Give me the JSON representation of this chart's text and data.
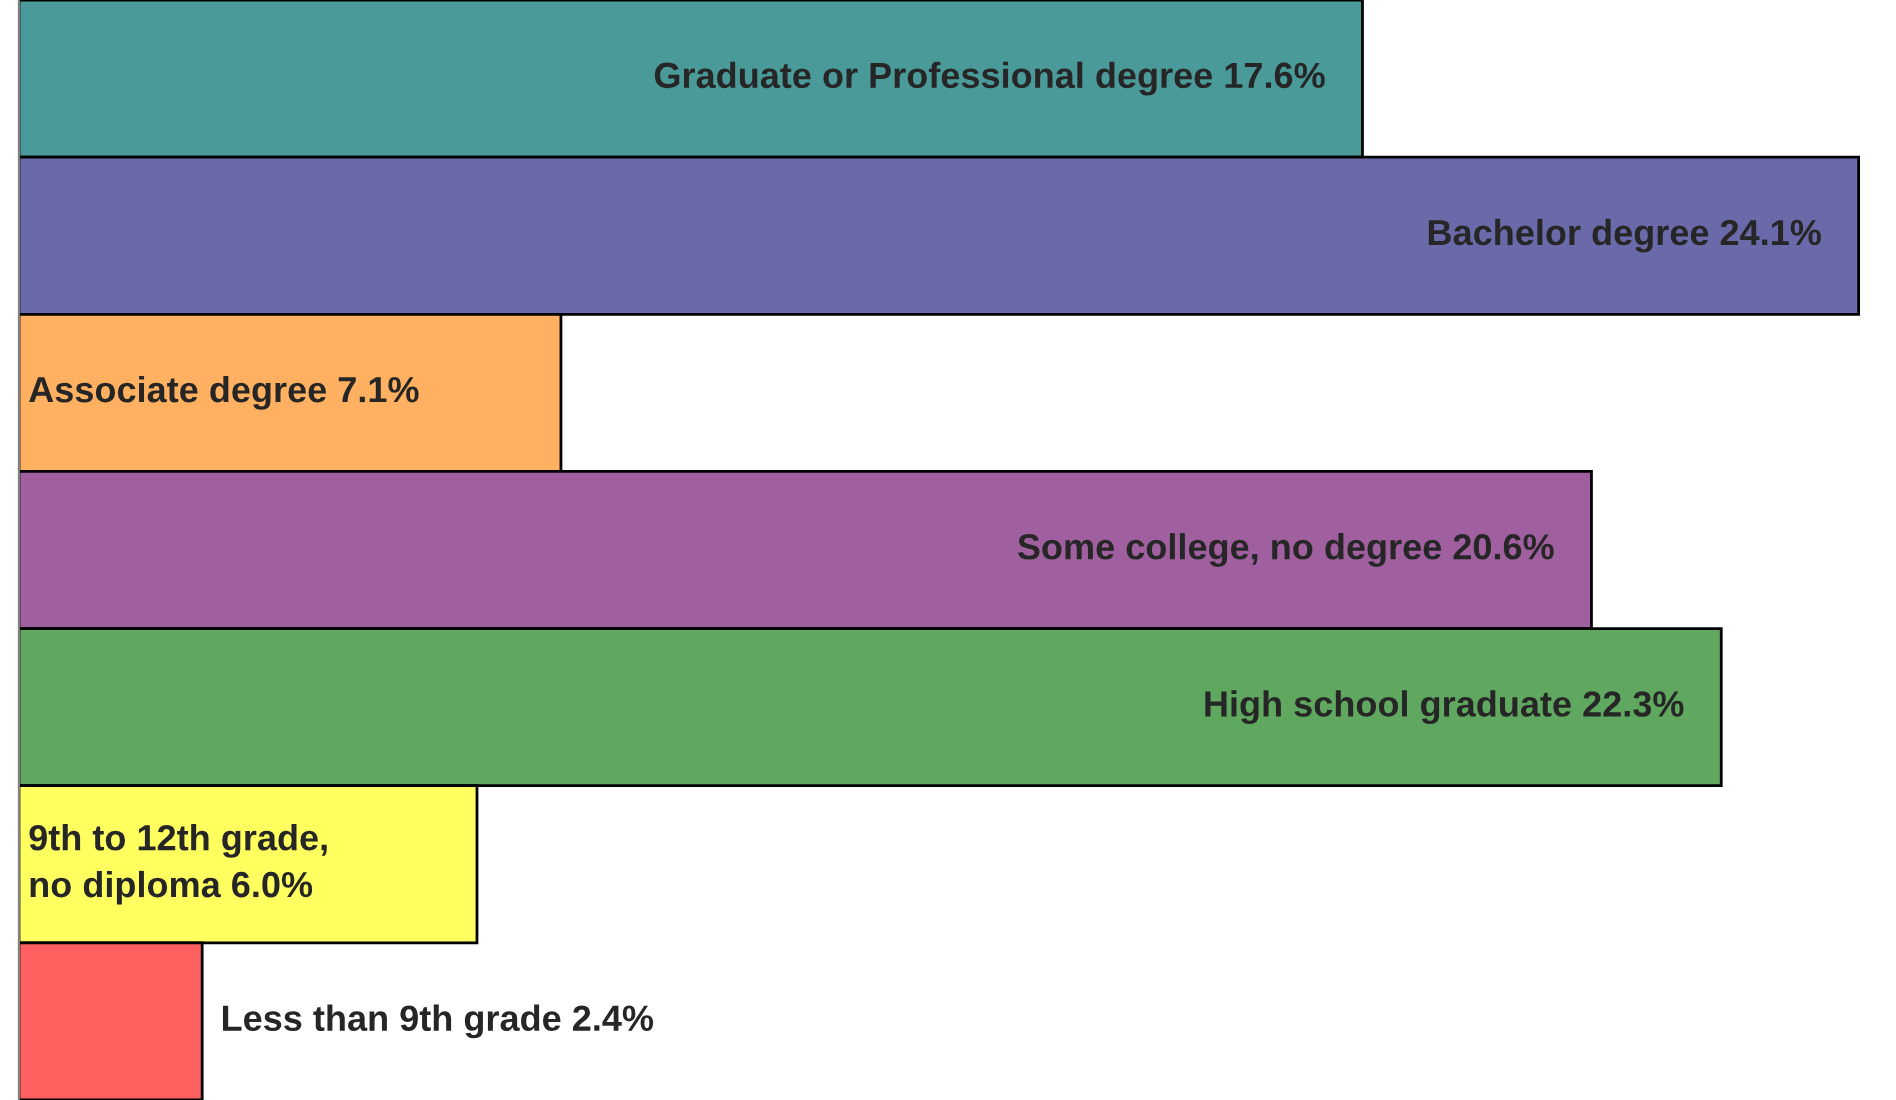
{
  "chart_data": {
    "type": "bar",
    "orientation": "horizontal",
    "categories": [
      null,
      null,
      null,
      null,
      null,
      null,
      null
    ],
    "values": [
      17.6,
      24.1,
      7.1,
      20.6,
      22.3,
      6.0,
      2.4
    ],
    "colors": [
      "#4a9a9a",
      "#6a6aaa",
      "#ffb060",
      "#a060a0",
      "#60a860",
      "#ffff60",
      "#ff6060"
    ],
    "value_labels": [
      "Graduate or Professional degree 17.6%",
      "Bachelor degree 24.1%",
      "Associate degree 7.1%",
      "Some college, no degree 20.6%",
      "High school graduate 22.3%",
      "9th to 12th grade,\nno diploma 6.0%",
      "Less than 9th grade 2.4%"
    ]
  }
}
